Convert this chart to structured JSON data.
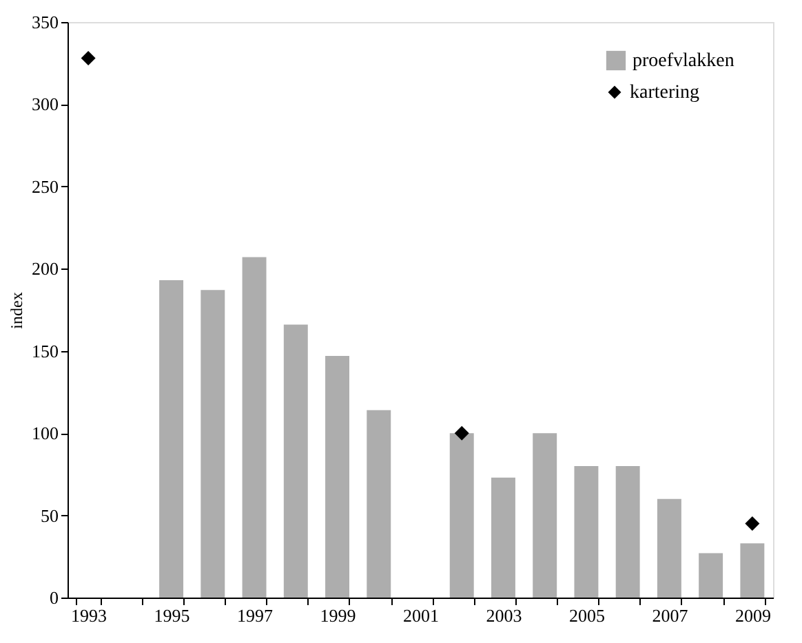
{
  "chart_data": {
    "type": "bar",
    "ylabel": "index",
    "categories": [
      "1993",
      null,
      "1995",
      null,
      "1997",
      null,
      "1999",
      null,
      "2001",
      null,
      "2003",
      null,
      "2005",
      null,
      "2007",
      null,
      "2009"
    ],
    "series": [
      {
        "name": "proefvlakken",
        "color": "#adadad",
        "values": [
          null,
          null,
          193,
          187,
          207,
          166,
          147,
          114,
          null,
          100,
          73,
          100,
          80,
          80,
          60,
          27,
          33
        ]
      },
      {
        "name": "kartering",
        "type": "scatter",
        "color": "#000000",
        "marker": "diamond",
        "values": [
          328,
          null,
          null,
          null,
          null,
          null,
          null,
          null,
          null,
          100,
          null,
          null,
          null,
          null,
          null,
          null,
          45
        ]
      }
    ],
    "ylim": [
      0,
      350
    ],
    "yticks": [
      0,
      50,
      100,
      150,
      200,
      250,
      300,
      350
    ],
    "grid": false,
    "legend": "top right"
  }
}
